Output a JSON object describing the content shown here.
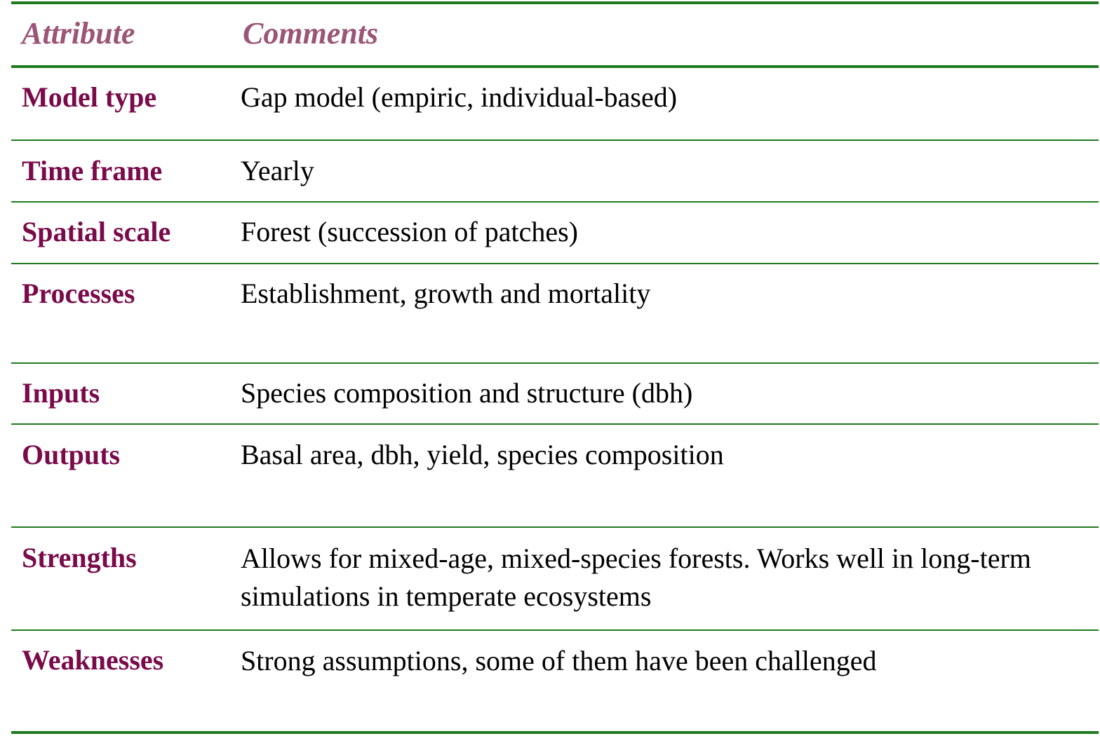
{
  "header": {
    "attribute_label": "Attribute",
    "comments_label": "Comments"
  },
  "rows": [
    {
      "attribute": "Model type",
      "comment": "Gap model (empiric, individual-based)"
    },
    {
      "attribute": "Time frame",
      "comment": "Yearly"
    },
    {
      "attribute": "Spatial scale",
      "comment": "Forest (succession of  patches)"
    },
    {
      "attribute": "Processes",
      "comment": "Establishment, growth and mortality"
    },
    {
      "attribute": "Inputs",
      "comment": "Species composition and structure (dbh)"
    },
    {
      "attribute": "Outputs",
      "comment": "Basal area, dbh, yield, species composition"
    },
    {
      "attribute": "Strengths",
      "comment": "Allows for mixed-age, mixed-species forests. Works well in long-term simulations in temperate ecosystems"
    },
    {
      "attribute": "Weaknesses",
      "comment": "Strong assumptions, some of  them have been challenged"
    }
  ],
  "colors": {
    "rule": "#1f7a1f",
    "header_text": "#9b5577",
    "attribute_text": "#7a0a4a",
    "comment_text": "#000000"
  }
}
